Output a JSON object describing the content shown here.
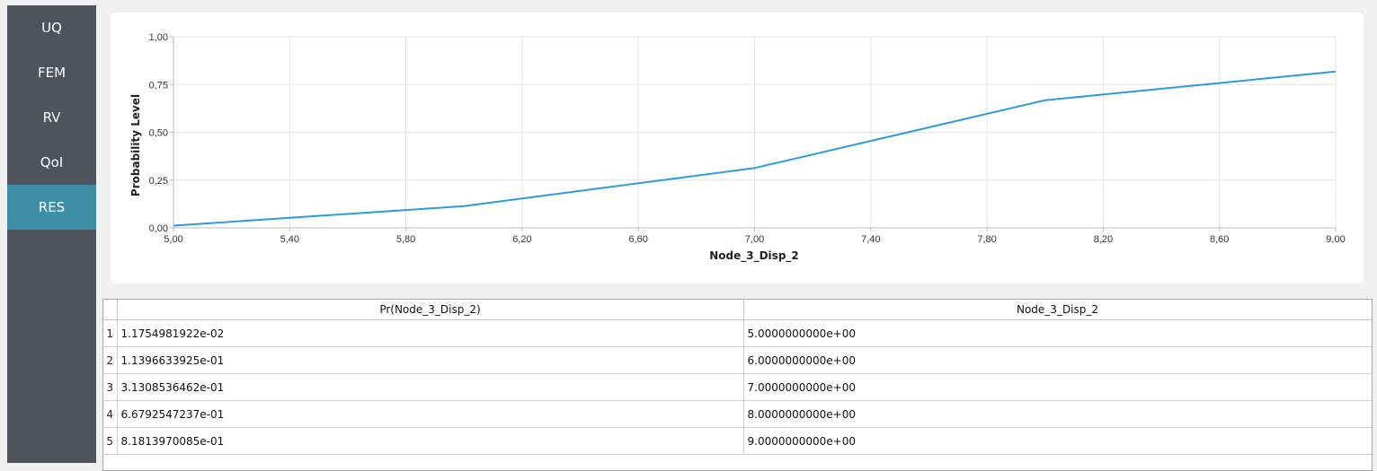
{
  "sidebar": {
    "items": [
      {
        "label": "UQ",
        "active": false
      },
      {
        "label": "FEM",
        "active": false
      },
      {
        "label": "RV",
        "active": false
      },
      {
        "label": "QoI",
        "active": false
      },
      {
        "label": "RES",
        "active": true
      }
    ]
  },
  "chart_data": {
    "type": "line",
    "xlabel": "Node_3_Disp_2",
    "ylabel": "Probability Level",
    "xlim": [
      5.0,
      9.0
    ],
    "ylim": [
      0.0,
      1.0
    ],
    "x_ticks": [
      "5,00",
      "5,40",
      "5,80",
      "6,20",
      "6,60",
      "7,00",
      "7,40",
      "7,80",
      "8,20",
      "8,60",
      "9,00"
    ],
    "y_ticks": [
      "0,00",
      "0,25",
      "0,50",
      "0,75",
      "1,00"
    ],
    "grid": true,
    "line_color": "#2e9bd6",
    "series": [
      {
        "x": [
          5.0,
          6.0,
          7.0,
          8.0,
          9.0
        ],
        "y": [
          0.01175,
          0.11397,
          0.31309,
          0.66793,
          0.81814
        ]
      }
    ]
  },
  "table": {
    "headers": [
      "Pr(Node_3_Disp_2)",
      "Node_3_Disp_2"
    ],
    "rows": [
      {
        "num": "1",
        "pr": "1.1754981922e-02",
        "val": "5.0000000000e+00"
      },
      {
        "num": "2",
        "pr": "1.1396633925e-01",
        "val": "6.0000000000e+00"
      },
      {
        "num": "3",
        "pr": "3.1308536462e-01",
        "val": "7.0000000000e+00"
      },
      {
        "num": "4",
        "pr": "6.6792547237e-01",
        "val": "8.0000000000e+00"
      },
      {
        "num": "5",
        "pr": "8.1813970085e-01",
        "val": "9.0000000000e+00"
      }
    ]
  }
}
